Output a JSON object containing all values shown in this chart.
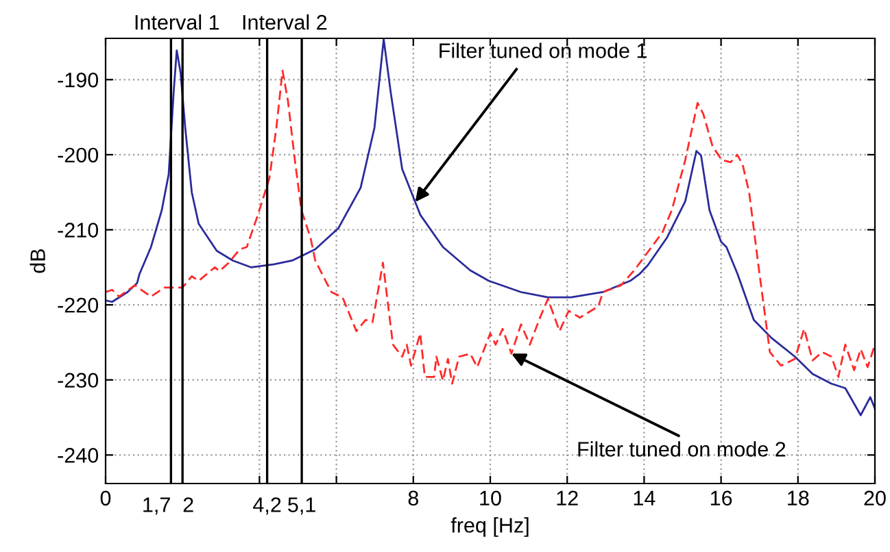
{
  "chart_data": {
    "type": "line",
    "xlabel": "freq [Hz]",
    "ylabel": "dB",
    "xlim": [
      0,
      20
    ],
    "ylim": [
      -243.8,
      -184.5
    ],
    "xticks": [
      0,
      {
        "value": 4,
        "label": null
      },
      {
        "value": 6,
        "label": null
      },
      8,
      10,
      12,
      14,
      16,
      18,
      20
    ],
    "yticks": [
      -240,
      -230,
      -220,
      -210,
      -200,
      -190
    ],
    "grid": true,
    "series": [
      {
        "color": "#2b2b9b",
        "line_style": "solid",
        "x": [
          0,
          0.17,
          0.57,
          0.82,
          0.88,
          1.18,
          1.46,
          1.64,
          1.77,
          1.85,
          1.95,
          2.07,
          2.24,
          2.42,
          2.89,
          3.31,
          3.78,
          4.38,
          4.85,
          5.45,
          6.05,
          6.63,
          6.99,
          7.23,
          7.41,
          7.71,
          8.18,
          8.77,
          9.48,
          9.96,
          10.8,
          11.5,
          12.1,
          12.93,
          13.64,
          13.88,
          14.1,
          14.6,
          15.07,
          15.36,
          15.48,
          15.7,
          16.0,
          16.14,
          16.43,
          16.85,
          17.31,
          17.92,
          18.38,
          18.87,
          19.23,
          19.63,
          19.88,
          20
        ],
        "values": [
          -219.4,
          -219.6,
          -218.3,
          -217.1,
          -215.9,
          -212.3,
          -207.4,
          -202.6,
          -191.6,
          -186.1,
          -189.1,
          -196.4,
          -205,
          -209.2,
          -212.8,
          -214.1,
          -215,
          -214.6,
          -214.1,
          -212.6,
          -209.8,
          -204.4,
          -196.4,
          -184.6,
          -191.6,
          -201.9,
          -208,
          -212.3,
          -215.4,
          -216.8,
          -218.3,
          -219,
          -219,
          -218.3,
          -216.8,
          -215.9,
          -214.7,
          -211,
          -206.2,
          -199.5,
          -200.1,
          -207.4,
          -211.6,
          -212.3,
          -215.9,
          -222,
          -224.4,
          -226.9,
          -229.2,
          -230.5,
          -231.1,
          -234.7,
          -232.3,
          -233.8
        ]
      },
      {
        "color": "#ff2a2a",
        "line_style": "dashed",
        "x": [
          0,
          0.17,
          0.35,
          0.76,
          1.18,
          1.53,
          2.0,
          2.24,
          2.42,
          2.84,
          2.96,
          3.2,
          3.49,
          3.67,
          3.96,
          4.26,
          4.44,
          4.6,
          4.74,
          4.92,
          5.09,
          5.33,
          5.45,
          5.87,
          6.16,
          6.52,
          6.76,
          6.94,
          7.21,
          7.47,
          7.71,
          7.83,
          7.94,
          8.18,
          8.3,
          8.54,
          8.6,
          8.77,
          8.9,
          9.01,
          9.19,
          9.48,
          9.66,
          10.0,
          10.14,
          10.32,
          10.55,
          10.8,
          11.03,
          11.27,
          11.5,
          11.8,
          12.04,
          12.33,
          12.81,
          12.93,
          13.4,
          13.76,
          14.12,
          14.47,
          14.72,
          15.07,
          15.39,
          15.54,
          15.78,
          16.02,
          16.25,
          16.42,
          16.56,
          16.73,
          16.97,
          17.27,
          17.56,
          17.92,
          18.16,
          18.38,
          18.63,
          18.87,
          19.05,
          19.23,
          19.46,
          19.63,
          19.81,
          20
        ],
        "values": [
          -218.3,
          -218,
          -218.9,
          -217.4,
          -218.9,
          -217.7,
          -217.7,
          -216.2,
          -216.8,
          -215,
          -215.5,
          -214.4,
          -212.6,
          -212.3,
          -208,
          -203.1,
          -196.4,
          -188.8,
          -192.8,
          -200.7,
          -207.4,
          -211.1,
          -214.1,
          -218.3,
          -219,
          -223.5,
          -222,
          -222.3,
          -214.4,
          -225.3,
          -226.9,
          -225.3,
          -228.1,
          -223.8,
          -229.6,
          -229.6,
          -226.9,
          -230.1,
          -227.2,
          -230.5,
          -226.9,
          -226.5,
          -228.3,
          -223.8,
          -225.3,
          -223.2,
          -226.5,
          -222.6,
          -225.3,
          -222,
          -219.2,
          -223.5,
          -220.8,
          -221.7,
          -220.2,
          -218.3,
          -217.4,
          -215.3,
          -212.8,
          -210.4,
          -207.4,
          -200.7,
          -193.1,
          -194.6,
          -198.9,
          -200.7,
          -201,
          -200,
          -201.3,
          -205,
          -214.7,
          -226.3,
          -228.1,
          -227.2,
          -223.2,
          -227.4,
          -226.3,
          -226.9,
          -229.6,
          -225.3,
          -228.7,
          -225.9,
          -228.3,
          -225.3
        ]
      }
    ],
    "ref_lines": [
      {
        "axis": "x",
        "value": 1.7,
        "label": "1,7",
        "color": "#000000"
      },
      {
        "axis": "x",
        "value": 2,
        "label": "2",
        "color": "#000000"
      },
      {
        "axis": "x",
        "value": 4.2,
        "label": "4,2",
        "color": "#000000"
      },
      {
        "axis": "x",
        "value": 5.1,
        "label": "5,1",
        "color": "#000000"
      }
    ],
    "annotations": [
      {
        "text": "Filter tuned on mode 1",
        "x": 8.05,
        "y": -206.3
      },
      {
        "text": "Filter tuned on mode 2",
        "x": 10.55,
        "y": -226.5
      },
      "Interval 1",
      "Interval 2"
    ]
  }
}
